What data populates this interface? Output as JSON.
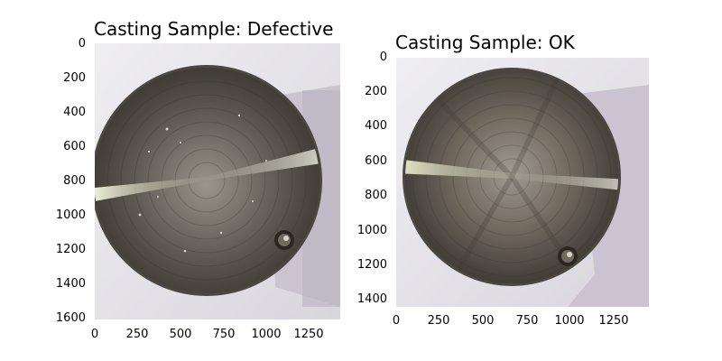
{
  "panels": [
    {
      "title": "Casting Sample: Defective",
      "y_ticks": [
        "0",
        "200",
        "400",
        "600",
        "800",
        "1000",
        "1200",
        "1400",
        "1600"
      ],
      "x_ticks": [
        "0",
        "250",
        "500",
        "750",
        "1000",
        "1250"
      ],
      "image_extent": {
        "width": 1440,
        "height": 1600
      },
      "image": "photo of round machined metal casting part on light gray background, with small scratches/defects on surface and a hole near lower right"
    },
    {
      "title": "Casting Sample: OK",
      "y_ticks": [
        "0",
        "200",
        "400",
        "600",
        "800",
        "1000",
        "1200",
        "1400"
      ],
      "x_ticks": [
        "0",
        "250",
        "500",
        "750",
        "1000",
        "1250"
      ],
      "image_extent": {
        "width": 1440,
        "height": 1440
      },
      "image": "photo of round machined metal casting part on light gray background, smooth surface with a hole near lower right"
    }
  ],
  "colors": {
    "background": "#e4e3e8",
    "shadow": "#c9c3cf",
    "metal_dark": "#3e3a35",
    "metal_mid": "#7d776e",
    "metal_light": "#c8c4b8",
    "highlight": "#f6f6e8"
  }
}
